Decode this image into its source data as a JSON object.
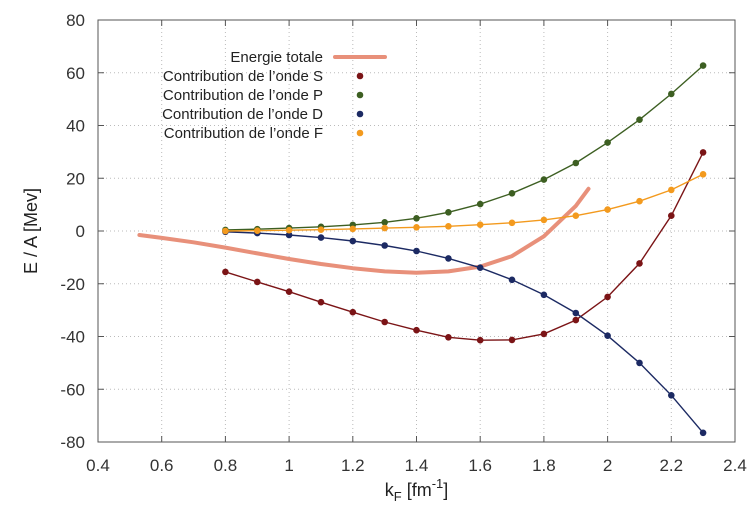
{
  "chart_data": {
    "type": "line",
    "xlabel": "k",
    "xlabel_sub": "F",
    "xlabel_unit_pre": " [fm",
    "xlabel_unit_sup": "-1",
    "xlabel_unit_post": "]",
    "ylabel": "E / A [Mev]",
    "xlim": [
      0.4,
      2.4
    ],
    "ylim": [
      -80,
      80
    ],
    "xticks": [
      0.4,
      0.6,
      0.8,
      1,
      1.2,
      1.4,
      1.6,
      1.8,
      2,
      2.2,
      2.4
    ],
    "yticks": [
      -80,
      -60,
      -40,
      -20,
      0,
      20,
      40,
      60,
      80
    ],
    "xtick_labels": [
      "0.4",
      "0.6",
      "0.8",
      "1",
      "1.2",
      "1.4",
      "1.6",
      "1.8",
      "2",
      "2.2",
      "2.4"
    ],
    "ytick_labels": [
      "-80",
      "-60",
      "-40",
      "-20",
      "0",
      "20",
      "40",
      "60",
      "80"
    ],
    "grid": true,
    "legend_position": "top-left",
    "series": [
      {
        "name": "Energie totale",
        "style": "line",
        "color": "#e8907a",
        "x": [
          0.53,
          0.6,
          0.7,
          0.8,
          0.9,
          1.0,
          1.1,
          1.2,
          1.3,
          1.4,
          1.5,
          1.6,
          1.7,
          1.8,
          1.9,
          1.94
        ],
        "y": [
          -1.5,
          -2.6,
          -4.3,
          -6.3,
          -8.5,
          -10.6,
          -12.5,
          -14.1,
          -15.3,
          -15.8,
          -15.3,
          -13.5,
          -9.5,
          -2.0,
          9.5,
          16.0
        ]
      },
      {
        "name": "Contribution de l’onde S",
        "style": "line-points",
        "color": "#7b1416",
        "x": [
          0.8,
          0.9,
          1.0,
          1.1,
          1.2,
          1.3,
          1.4,
          1.5,
          1.6,
          1.7,
          1.8,
          1.9,
          2.0,
          2.1,
          2.2,
          2.3
        ],
        "y": [
          -15.5,
          -19.3,
          -23.0,
          -27.0,
          -30.8,
          -34.5,
          -37.6,
          -40.3,
          -41.4,
          -41.3,
          -39.0,
          -33.8,
          -25.0,
          -12.3,
          5.8,
          29.8
        ]
      },
      {
        "name": "Contribution de l’onde P",
        "style": "line-points",
        "color": "#3d5f22",
        "x": [
          0.8,
          0.9,
          1.0,
          1.1,
          1.2,
          1.3,
          1.4,
          1.5,
          1.6,
          1.7,
          1.8,
          1.9,
          2.0,
          2.1,
          2.2,
          2.3
        ],
        "y": [
          0.4,
          0.7,
          1.1,
          1.6,
          2.3,
          3.3,
          4.8,
          7.1,
          10.2,
          14.3,
          19.5,
          25.8,
          33.5,
          42.2,
          52.0,
          62.7
        ]
      },
      {
        "name": "Contribution de l’onde D",
        "style": "line-points",
        "color": "#1c2a63",
        "x": [
          0.8,
          0.9,
          1.0,
          1.1,
          1.2,
          1.3,
          1.4,
          1.5,
          1.6,
          1.7,
          1.8,
          1.9,
          2.0,
          2.1,
          2.2,
          2.3
        ],
        "y": [
          -0.3,
          -0.8,
          -1.5,
          -2.5,
          -3.8,
          -5.5,
          -7.6,
          -10.4,
          -13.9,
          -18.5,
          -24.2,
          -31.1,
          -39.7,
          -50.0,
          -62.3,
          -76.5
        ]
      },
      {
        "name": "Contribution de l’onde F",
        "style": "line-points",
        "color": "#f39a1e",
        "x": [
          0.8,
          0.9,
          1.0,
          1.1,
          1.2,
          1.3,
          1.4,
          1.5,
          1.6,
          1.7,
          1.8,
          1.9,
          2.0,
          2.1,
          2.2,
          2.3
        ],
        "y": [
          0.0,
          0.1,
          0.3,
          0.5,
          0.8,
          1.1,
          1.4,
          1.8,
          2.4,
          3.1,
          4.2,
          5.8,
          8.1,
          11.3,
          15.6,
          21.5
        ]
      }
    ]
  }
}
